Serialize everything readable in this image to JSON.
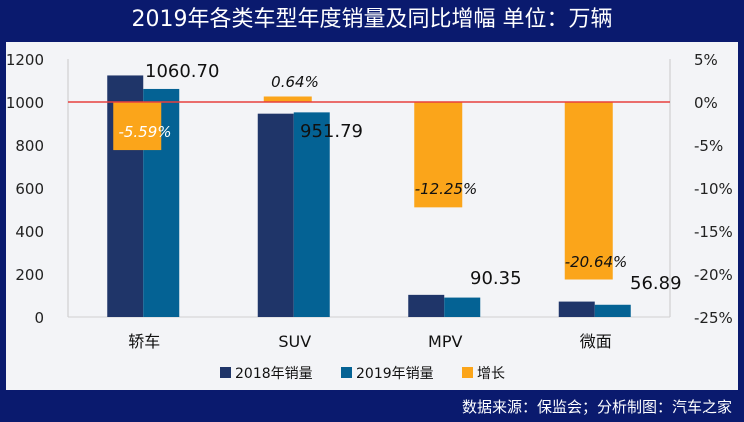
{
  "title": "2019年各类车型年度销量及同比增幅  单位：万辆",
  "footer": "数据来源：保监会；分析制图：汽车之家",
  "chart_data": {
    "type": "bar",
    "title": "2019年各类车型年度销量及同比增幅  单位：万辆",
    "categories": [
      "轿车",
      "SUV",
      "MPV",
      "微面"
    ],
    "series": [
      {
        "name": "2018年销量",
        "axis": "left",
        "color": "#1f3569",
        "values": [
          1123.5,
          945.7,
          103.0,
          71.7
        ],
        "labels": [
          "",
          "",
          "",
          ""
        ]
      },
      {
        "name": "2019年销量",
        "axis": "left",
        "color": "#046294",
        "values": [
          1060.7,
          951.79,
          90.35,
          56.89
        ],
        "labels": [
          "1060.70",
          "951.79",
          "90.35",
          "56.89"
        ]
      },
      {
        "name": "增长",
        "axis": "right",
        "color": "#fba51a",
        "values": [
          -5.59,
          0.64,
          -12.25,
          -20.64
        ],
        "labels": [
          "-5.59%",
          "0.64%",
          "-12.25%",
          "-20.64%"
        ]
      }
    ],
    "ylim": [
      0,
      1200
    ],
    "yticks": [
      "0",
      "200",
      "400",
      "600",
      "800",
      "1000",
      "1200"
    ],
    "y2lim": [
      -25,
      5
    ],
    "y2ticks": [
      "-25%",
      "-20%",
      "-15%",
      "-10%",
      "-5%",
      "0%",
      "5%"
    ],
    "reference_line": {
      "axis": "right",
      "value": 0,
      "color": "#e8403f"
    },
    "legend": "bottom",
    "grid": false
  }
}
